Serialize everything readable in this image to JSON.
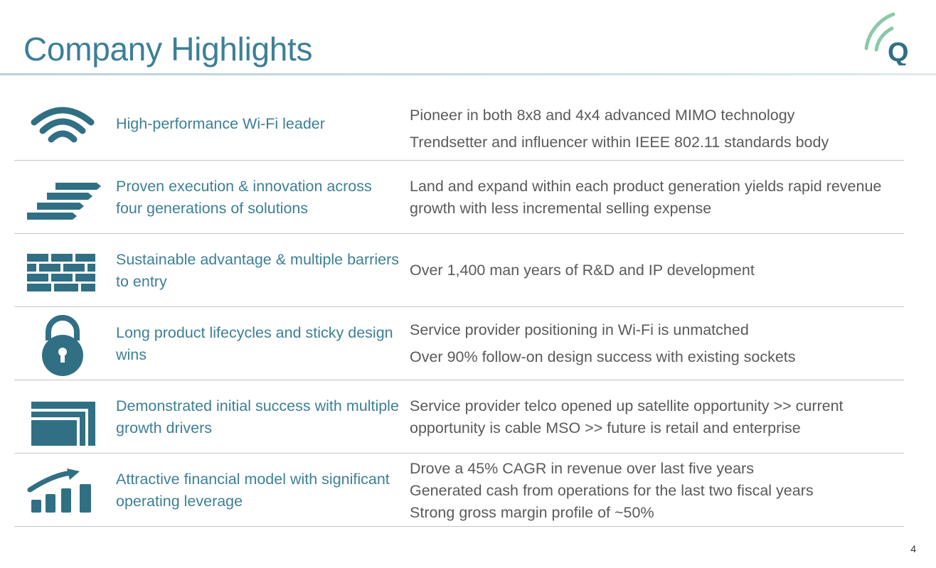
{
  "slide": {
    "title": "Company Highlights",
    "page_number": "4",
    "accent_color": "#3d7f96",
    "icon_color": "#316f84",
    "body_text_color": "#5a5a5a",
    "logo": {
      "letter": "Q",
      "arc_color": "#8cc9a8",
      "letter_color": "#316f84"
    }
  },
  "rows": [
    {
      "icon": "wifi-icon",
      "label": "High-performance Wi-Fi leader",
      "details": [
        "Pioneer in both 8x8 and 4x4 advanced MIMO technology",
        "Trendsetter and influencer within IEEE 802.11 standards body"
      ]
    },
    {
      "icon": "stairs-icon",
      "label": "Proven execution & innovation across four generations of solutions",
      "details": [
        "Land and expand within each product generation yields rapid revenue growth with less incremental selling expense"
      ]
    },
    {
      "icon": "brick-wall-icon",
      "label": "Sustainable advantage & multiple barriers to entry",
      "details": [
        "Over 1,400 man years of R&D and IP development"
      ]
    },
    {
      "icon": "padlock-icon",
      "label": "Long product lifecycles and sticky design wins",
      "details": [
        "Service provider positioning in Wi-Fi is unmatched",
        "Over 90% follow-on design success with existing sockets"
      ]
    },
    {
      "icon": "nested-squares-icon",
      "label": "Demonstrated initial success with multiple growth drivers",
      "details": [
        "Service provider telco opened up satellite opportunity >> current opportunity is cable MSO >> future is retail and enterprise"
      ]
    },
    {
      "icon": "growth-chart-icon",
      "label": "Attractive financial model with significant operating leverage",
      "details": [
        "Drove a 45% CAGR in revenue over last five years",
        "Generated cash from operations for the last two fiscal years",
        "Strong gross margin profile of ~50%"
      ]
    }
  ]
}
